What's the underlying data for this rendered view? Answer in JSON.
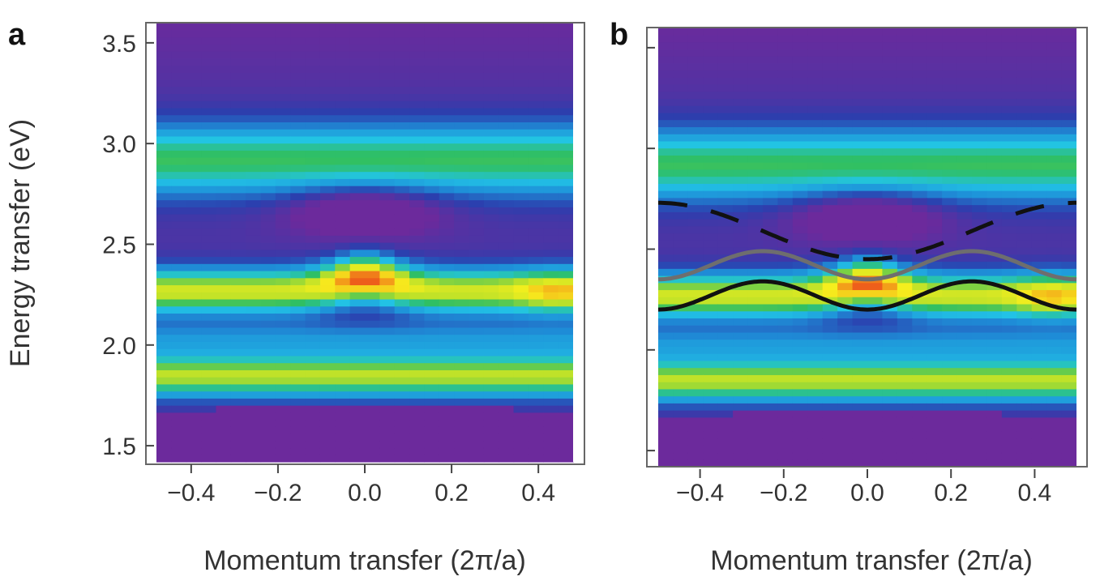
{
  "figure": {
    "panels": [
      {
        "letter": "a",
        "xlabel": "Momentum transfer (2π/a)",
        "ylabel": "Energy transfer (eV)"
      },
      {
        "letter": "b",
        "xlabel": "Momentum transfer (2π/a)",
        "ylabel": ""
      }
    ]
  },
  "chart_data": [
    {
      "type": "heatmap",
      "panel": "a",
      "title": "",
      "xlabel": "Momentum transfer (2π/a)",
      "ylabel": "Energy transfer (eV)",
      "xlim": [
        -0.48,
        0.48
      ],
      "ylim": [
        1.42,
        3.6
      ],
      "xticks": [
        -0.4,
        -0.2,
        0.0,
        0.2,
        0.4
      ],
      "xtick_labels": [
        "−0.4",
        "−0.2",
        "0.0",
        "0.2",
        "0.4"
      ],
      "yticks": [
        1.5,
        2.0,
        2.5,
        3.0,
        3.5
      ],
      "ytick_labels": [
        "1.5",
        "2.0",
        "2.5",
        "3.0",
        "3.5"
      ],
      "colormap": [
        "#6c2a9c",
        "#2b3fae",
        "#1e8fd8",
        "#22c4e6",
        "#2fbf63",
        "#b8e02a",
        "#f6ef1d",
        "#f39a1a",
        "#e8231c"
      ],
      "features": [
        {
          "name": "intensity band",
          "energy_eV": 2.27,
          "intensity": 0.72,
          "note": "peaks near 0.0 at 2.37 eV and near 0.45"
        },
        {
          "name": "intensity band",
          "energy_eV": 2.92,
          "intensity": 0.45
        },
        {
          "name": "intensity band",
          "energy_eV": 1.85,
          "intensity": 0.58
        },
        {
          "name": "background",
          "energy_eV": 2.03,
          "intensity": 0.2
        },
        {
          "name": "minimum",
          "energy_eV": 2.68,
          "momentum": 0.0,
          "intensity": 0.05
        },
        {
          "name": "cutoff",
          "energy_eV": 1.69,
          "intensity": 0.0
        }
      ],
      "grid": false
    },
    {
      "type": "heatmap",
      "panel": "b",
      "title": "",
      "xlabel": "Momentum transfer (2π/a)",
      "ylabel": "",
      "xlim": [
        -0.5,
        0.5
      ],
      "ylim": [
        1.42,
        3.6
      ],
      "xticks": [
        -0.4,
        -0.2,
        0.0,
        0.2,
        0.4
      ],
      "xtick_labels": [
        "−0.4",
        "−0.2",
        "0.0",
        "0.2",
        "0.4"
      ],
      "yticks": [
        1.5,
        2.0,
        2.5,
        3.0,
        3.5
      ],
      "ytick_labels": [],
      "colormap": [
        "#6c2a9c",
        "#2b3fae",
        "#1e8fd8",
        "#22c4e6",
        "#2fbf63",
        "#b8e02a",
        "#f6ef1d",
        "#f39a1a",
        "#e8231c"
      ],
      "features": [
        {
          "name": "intensity band",
          "energy_eV": 2.27,
          "intensity": 0.72,
          "note": "peaks near 0.0 at 2.37 eV and near 0.45"
        },
        {
          "name": "intensity band",
          "energy_eV": 2.92,
          "intensity": 0.45
        },
        {
          "name": "intensity band",
          "energy_eV": 1.85,
          "intensity": 0.58
        },
        {
          "name": "background",
          "energy_eV": 2.03,
          "intensity": 0.2
        },
        {
          "name": "minimum",
          "energy_eV": 2.68,
          "momentum": 0.0,
          "intensity": 0.05
        },
        {
          "name": "cutoff",
          "energy_eV": 1.69,
          "intensity": 0.0
        }
      ],
      "overlay_curves": [
        {
          "style": "solid",
          "color": "#111111",
          "formula": "E = 2.27 - 0.07 cos(4πq)",
          "q_range": [
            -0.5,
            0.5
          ]
        },
        {
          "style": "solid",
          "color": "#6e6e6e",
          "formula": "E = 2.42 + 0.07 cos(4πq + π)",
          "q_range": [
            -0.5,
            0.5
          ]
        },
        {
          "style": "dashed",
          "color": "#111111",
          "formula": "E = 2.59 + 0.14 cos(2πq + π)",
          "q_range": [
            -0.5,
            0.5
          ]
        }
      ],
      "grid": false
    }
  ]
}
